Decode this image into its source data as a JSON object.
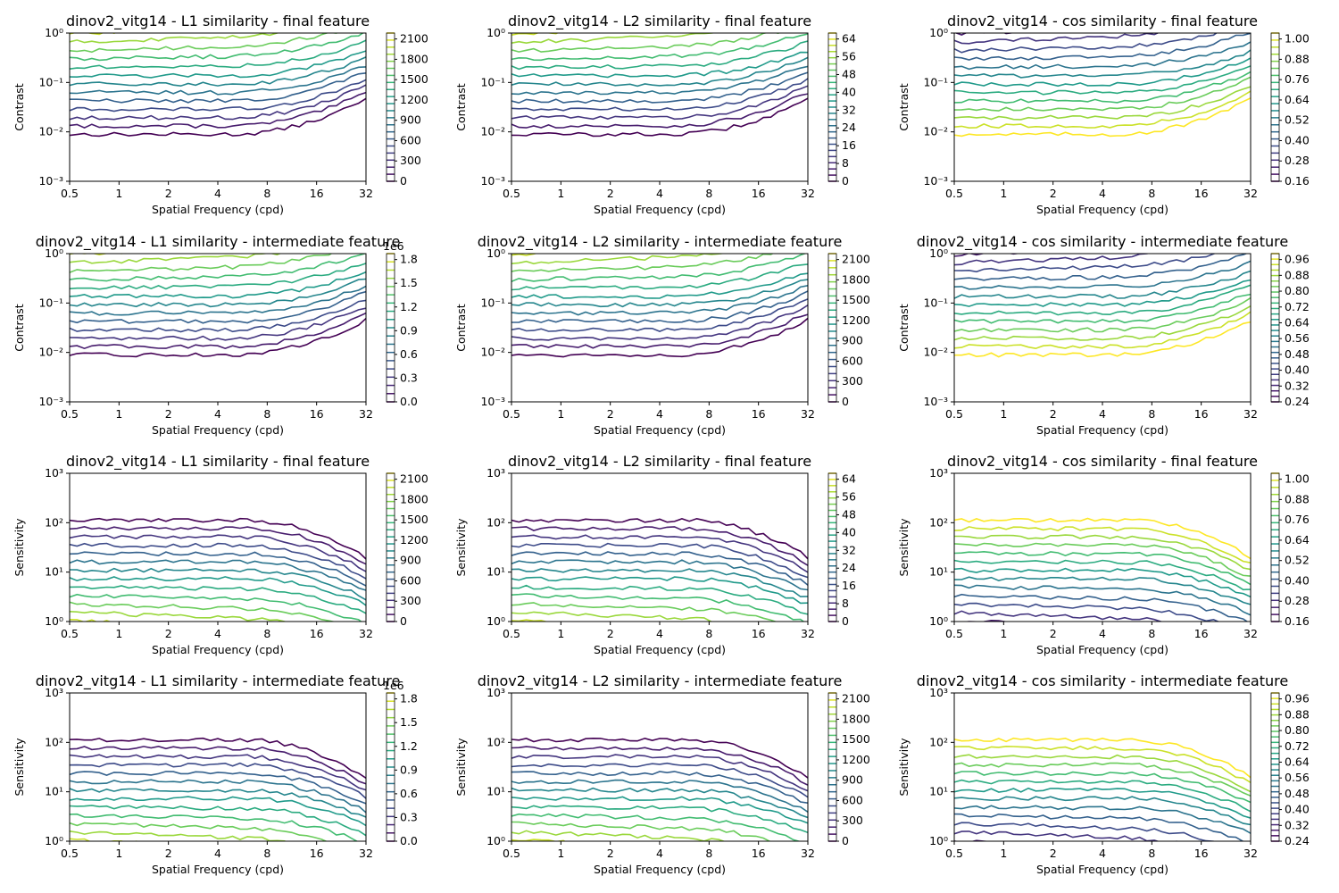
{
  "figure": {
    "width": 1500,
    "height": 1000
  },
  "colors": {
    "viridis": [
      "#440154",
      "#482878",
      "#3e4989",
      "#31688e",
      "#26828e",
      "#1f9e89",
      "#35b779",
      "#6ece58",
      "#b5de2b",
      "#fde725"
    ],
    "axis": "#000000"
  },
  "chart_data": [
    {
      "type": "contour",
      "title": "dinov2_vitg14 - L1 similarity - final feature",
      "xlabel": "Spatial Frequency (cpd)",
      "ylabel": "Contrast",
      "xscale": "log",
      "yscale": "log",
      "xlim": [
        0.5,
        32
      ],
      "ylim": [
        0.001,
        1
      ],
      "xticks": [
        "0.5",
        "1",
        "2",
        "4",
        "8",
        "16",
        "32"
      ],
      "yticks": [
        "10⁻³",
        "10⁻²",
        "10⁻¹",
        "10⁰"
      ],
      "colorbar": {
        "levels": [
          "0",
          "300",
          "600",
          "900",
          "1200",
          "1500",
          "1800",
          "2100"
        ],
        "offset": ""
      },
      "mode": "contrast"
    },
    {
      "type": "contour",
      "title": "dinov2_vitg14 - L2 similarity - final feature",
      "xlabel": "Spatial Frequency (cpd)",
      "ylabel": "Contrast",
      "xscale": "log",
      "yscale": "log",
      "xlim": [
        0.5,
        32
      ],
      "ylim": [
        0.001,
        1
      ],
      "xticks": [
        "0.5",
        "1",
        "2",
        "4",
        "8",
        "16",
        "32"
      ],
      "yticks": [
        "10⁻³",
        "10⁻²",
        "10⁻¹",
        "10⁰"
      ],
      "colorbar": {
        "levels": [
          "0",
          "8",
          "16",
          "24",
          "32",
          "40",
          "48",
          "56",
          "64"
        ],
        "offset": ""
      },
      "mode": "contrast"
    },
    {
      "type": "contour",
      "title": "dinov2_vitg14 - cos similarity - final feature",
      "xlabel": "Spatial Frequency (cpd)",
      "ylabel": "Contrast",
      "xscale": "log",
      "yscale": "log",
      "xlim": [
        0.5,
        32
      ],
      "ylim": [
        0.001,
        1
      ],
      "xticks": [
        "0.5",
        "1",
        "2",
        "4",
        "8",
        "16",
        "32"
      ],
      "yticks": [
        "10⁻³",
        "10⁻²",
        "10⁻¹",
        "10⁰"
      ],
      "colorbar": {
        "levels": [
          "0.16",
          "0.28",
          "0.40",
          "0.52",
          "0.64",
          "0.76",
          "0.88",
          "1.00"
        ],
        "offset": ""
      },
      "mode": "contrast",
      "inverted": true
    },
    {
      "type": "contour",
      "title": "dinov2_vitg14 - L1 similarity - intermediate feature",
      "xlabel": "Spatial Frequency (cpd)",
      "ylabel": "Contrast",
      "xscale": "log",
      "yscale": "log",
      "xlim": [
        0.5,
        32
      ],
      "ylim": [
        0.001,
        1
      ],
      "xticks": [
        "0.5",
        "1",
        "2",
        "4",
        "8",
        "16",
        "32"
      ],
      "yticks": [
        "10⁻³",
        "10⁻²",
        "10⁻¹",
        "10⁰"
      ],
      "colorbar": {
        "levels": [
          "0.0",
          "0.3",
          "0.6",
          "0.9",
          "1.2",
          "1.5",
          "1.8"
        ],
        "offset": "1e6"
      },
      "mode": "contrast"
    },
    {
      "type": "contour",
      "title": "dinov2_vitg14 - L2 similarity - intermediate feature",
      "xlabel": "Spatial Frequency (cpd)",
      "ylabel": "Contrast",
      "xscale": "log",
      "yscale": "log",
      "xlim": [
        0.5,
        32
      ],
      "ylim": [
        0.001,
        1
      ],
      "xticks": [
        "0.5",
        "1",
        "2",
        "4",
        "8",
        "16",
        "32"
      ],
      "yticks": [
        "10⁻³",
        "10⁻²",
        "10⁻¹",
        "10⁰"
      ],
      "colorbar": {
        "levels": [
          "0",
          "300",
          "600",
          "900",
          "1200",
          "1500",
          "1800",
          "2100"
        ],
        "offset": ""
      },
      "mode": "contrast"
    },
    {
      "type": "contour",
      "title": "dinov2_vitg14 - cos similarity - intermediate feature",
      "xlabel": "Spatial Frequency (cpd)",
      "ylabel": "Contrast",
      "xscale": "log",
      "yscale": "log",
      "xlim": [
        0.5,
        32
      ],
      "ylim": [
        0.001,
        1
      ],
      "xticks": [
        "0.5",
        "1",
        "2",
        "4",
        "8",
        "16",
        "32"
      ],
      "yticks": [
        "10⁻³",
        "10⁻²",
        "10⁻¹",
        "10⁰"
      ],
      "colorbar": {
        "levels": [
          "0.24",
          "0.32",
          "0.40",
          "0.48",
          "0.56",
          "0.64",
          "0.72",
          "0.80",
          "0.88",
          "0.96"
        ],
        "offset": ""
      },
      "mode": "contrast",
      "inverted": true
    },
    {
      "type": "contour",
      "title": "dinov2_vitg14 - L1 similarity - final feature",
      "xlabel": "Spatial Frequency (cpd)",
      "ylabel": "Sensitivity",
      "xscale": "log",
      "yscale": "log",
      "xlim": [
        0.5,
        32
      ],
      "ylim": [
        1,
        1000
      ],
      "xticks": [
        "0.5",
        "1",
        "2",
        "4",
        "8",
        "16",
        "32"
      ],
      "yticks": [
        "10⁰",
        "10¹",
        "10²",
        "10³"
      ],
      "colorbar": {
        "levels": [
          "0",
          "300",
          "600",
          "900",
          "1200",
          "1500",
          "1800",
          "2100"
        ],
        "offset": ""
      },
      "mode": "sensitivity"
    },
    {
      "type": "contour",
      "title": "dinov2_vitg14 - L2 similarity - final feature",
      "xlabel": "Spatial Frequency (cpd)",
      "ylabel": "Sensitivity",
      "xscale": "log",
      "yscale": "log",
      "xlim": [
        0.5,
        32
      ],
      "ylim": [
        1,
        1000
      ],
      "xticks": [
        "0.5",
        "1",
        "2",
        "4",
        "8",
        "16",
        "32"
      ],
      "yticks": [
        "10⁰",
        "10¹",
        "10²",
        "10³"
      ],
      "colorbar": {
        "levels": [
          "0",
          "8",
          "16",
          "24",
          "32",
          "40",
          "48",
          "56",
          "64"
        ],
        "offset": ""
      },
      "mode": "sensitivity"
    },
    {
      "type": "contour",
      "title": "dinov2_vitg14 - cos similarity - final feature",
      "xlabel": "Spatial Frequency (cpd)",
      "ylabel": "Sensitivity",
      "xscale": "log",
      "yscale": "log",
      "xlim": [
        0.5,
        32
      ],
      "ylim": [
        1,
        1000
      ],
      "xticks": [
        "0.5",
        "1",
        "2",
        "4",
        "8",
        "16",
        "32"
      ],
      "yticks": [
        "10⁰",
        "10¹",
        "10²",
        "10³"
      ],
      "colorbar": {
        "levels": [
          "0.16",
          "0.28",
          "0.40",
          "0.52",
          "0.64",
          "0.76",
          "0.88",
          "1.00"
        ],
        "offset": ""
      },
      "mode": "sensitivity",
      "inverted": true
    },
    {
      "type": "contour",
      "title": "dinov2_vitg14 - L1 similarity - intermediate feature",
      "xlabel": "Spatial Frequency (cpd)",
      "ylabel": "Sensitivity",
      "xscale": "log",
      "yscale": "log",
      "xlim": [
        0.5,
        32
      ],
      "ylim": [
        1,
        1000
      ],
      "xticks": [
        "0.5",
        "1",
        "2",
        "4",
        "8",
        "16",
        "32"
      ],
      "yticks": [
        "10⁰",
        "10¹",
        "10²",
        "10³"
      ],
      "colorbar": {
        "levels": [
          "0.0",
          "0.3",
          "0.6",
          "0.9",
          "1.2",
          "1.5",
          "1.8"
        ],
        "offset": "1e6"
      },
      "mode": "sensitivity"
    },
    {
      "type": "contour",
      "title": "dinov2_vitg14 - L2 similarity - intermediate feature",
      "xlabel": "Spatial Frequency (cpd)",
      "ylabel": "Sensitivity",
      "xscale": "log",
      "yscale": "log",
      "xlim": [
        0.5,
        32
      ],
      "ylim": [
        1,
        1000
      ],
      "xticks": [
        "0.5",
        "1",
        "2",
        "4",
        "8",
        "16",
        "32"
      ],
      "yticks": [
        "10⁰",
        "10¹",
        "10²",
        "10³"
      ],
      "colorbar": {
        "levels": [
          "0",
          "300",
          "600",
          "900",
          "1200",
          "1500",
          "1800",
          "2100"
        ],
        "offset": ""
      },
      "mode": "sensitivity"
    },
    {
      "type": "contour",
      "title": "dinov2_vitg14 - cos similarity - intermediate feature",
      "xlabel": "Spatial Frequency (cpd)",
      "ylabel": "Sensitivity",
      "xscale": "log",
      "yscale": "log",
      "xlim": [
        0.5,
        32
      ],
      "ylim": [
        1,
        1000
      ],
      "xticks": [
        "0.5",
        "1",
        "2",
        "4",
        "8",
        "16",
        "32"
      ],
      "yticks": [
        "10⁰",
        "10¹",
        "10²",
        "10³"
      ],
      "colorbar": {
        "levels": [
          "0.24",
          "0.32",
          "0.40",
          "0.48",
          "0.56",
          "0.64",
          "0.72",
          "0.80",
          "0.88",
          "0.96"
        ],
        "offset": ""
      },
      "mode": "sensitivity",
      "inverted": true
    }
  ]
}
